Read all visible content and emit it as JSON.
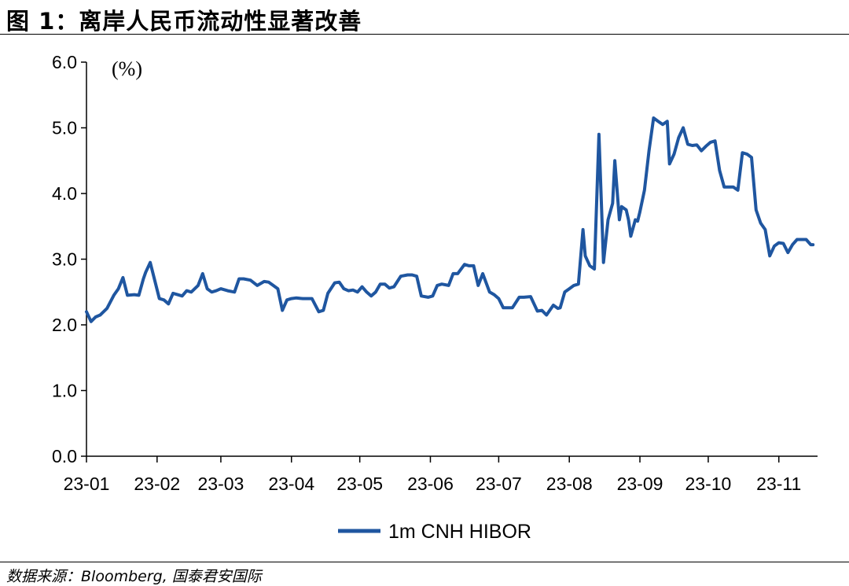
{
  "header": {
    "title": "图 1：离岸人民币流动性显著改善"
  },
  "footer": {
    "source": "数据来源：Bloomberg, 国泰君安国际"
  },
  "chart_data": {
    "type": "line",
    "unit_label": "(%)",
    "ylim": [
      0,
      6
    ],
    "yticks": [
      0,
      1,
      2,
      3,
      4,
      5,
      6
    ],
    "ytick_labels": [
      "0.0",
      "1.0",
      "2.0",
      "3.0",
      "4.0",
      "5.0",
      "6.0"
    ],
    "xlim": [
      "2023-01-01",
      "2023-11-18"
    ],
    "xtick_labels": [
      "23-01",
      "23-02",
      "23-03",
      "23-04",
      "23-05",
      "23-06",
      "23-07",
      "23-08",
      "23-09",
      "23-10",
      "23-11"
    ],
    "xtick_dates": [
      "2023-01-01",
      "2023-02-01",
      "2023-03-01",
      "2023-04-01",
      "2023-05-01",
      "2023-06-01",
      "2023-07-01",
      "2023-08-01",
      "2023-09-01",
      "2023-10-01",
      "2023-11-01"
    ],
    "grid": false,
    "legend_position": "bottom-center",
    "series": [
      {
        "name": "1m CNH HIBOR",
        "color": "#1F56A0",
        "x": [
          "2023-01-01",
          "2023-01-03",
          "2023-01-05",
          "2023-01-07",
          "2023-01-10",
          "2023-01-13",
          "2023-01-15",
          "2023-01-17",
          "2023-01-19",
          "2023-01-22",
          "2023-01-24",
          "2023-01-26",
          "2023-01-27",
          "2023-01-29",
          "2023-02-02",
          "2023-02-04",
          "2023-02-06",
          "2023-02-08",
          "2023-02-10",
          "2023-02-12",
          "2023-02-14",
          "2023-02-16",
          "2023-02-19",
          "2023-02-21",
          "2023-02-23",
          "2023-02-25",
          "2023-02-27",
          "2023-03-01",
          "2023-03-04",
          "2023-03-07",
          "2023-03-09",
          "2023-03-11",
          "2023-03-14",
          "2023-03-17",
          "2023-03-20",
          "2023-03-22",
          "2023-03-24",
          "2023-03-26",
          "2023-03-28",
          "2023-03-30",
          "2023-04-01",
          "2023-04-03",
          "2023-04-06",
          "2023-04-10",
          "2023-04-13",
          "2023-04-15",
          "2023-04-17",
          "2023-04-20",
          "2023-04-22",
          "2023-04-24",
          "2023-04-26",
          "2023-04-28",
          "2023-04-30",
          "2023-05-02",
          "2023-05-04",
          "2023-05-06",
          "2023-05-08",
          "2023-05-10",
          "2023-05-12",
          "2023-05-14",
          "2023-05-16",
          "2023-05-19",
          "2023-05-22",
          "2023-05-24",
          "2023-05-26",
          "2023-05-28",
          "2023-05-31",
          "2023-06-02",
          "2023-06-04",
          "2023-06-06",
          "2023-06-09",
          "2023-06-11",
          "2023-06-13",
          "2023-06-16",
          "2023-06-18",
          "2023-06-20",
          "2023-06-22",
          "2023-06-24",
          "2023-06-27",
          "2023-06-29",
          "2023-07-01",
          "2023-07-03",
          "2023-07-05",
          "2023-07-07",
          "2023-07-10",
          "2023-07-12",
          "2023-07-15",
          "2023-07-18",
          "2023-07-20",
          "2023-07-22",
          "2023-07-25",
          "2023-07-27",
          "2023-07-28",
          "2023-07-30",
          "2023-08-01",
          "2023-08-03",
          "2023-08-05",
          "2023-08-07",
          "2023-08-08",
          "2023-08-10",
          "2023-08-12",
          "2023-08-14",
          "2023-08-16",
          "2023-08-18",
          "2023-08-20",
          "2023-08-21",
          "2023-08-23",
          "2023-08-24",
          "2023-08-26",
          "2023-08-27",
          "2023-08-28",
          "2023-08-30",
          "2023-08-31",
          "2023-09-01",
          "2023-09-03",
          "2023-09-05",
          "2023-09-07",
          "2023-09-09",
          "2023-09-11",
          "2023-09-13",
          "2023-09-14",
          "2023-09-16",
          "2023-09-18",
          "2023-09-20",
          "2023-09-22",
          "2023-09-24",
          "2023-09-26",
          "2023-09-28",
          "2023-09-30",
          "2023-10-02",
          "2023-10-04",
          "2023-10-06",
          "2023-10-08",
          "2023-10-10",
          "2023-10-12",
          "2023-10-14",
          "2023-10-16",
          "2023-10-18",
          "2023-10-20",
          "2023-10-22",
          "2023-10-24",
          "2023-10-26",
          "2023-10-28",
          "2023-10-30",
          "2023-11-01",
          "2023-11-03",
          "2023-11-05",
          "2023-11-07",
          "2023-11-09",
          "2023-11-11",
          "2023-11-13",
          "2023-11-15",
          "2023-11-16"
        ],
        "values": [
          2.2,
          2.05,
          2.12,
          2.15,
          2.25,
          2.45,
          2.55,
          2.72,
          2.45,
          2.46,
          2.45,
          2.7,
          2.8,
          2.95,
          2.4,
          2.38,
          2.32,
          2.48,
          2.46,
          2.44,
          2.52,
          2.5,
          2.6,
          2.78,
          2.55,
          2.5,
          2.52,
          2.55,
          2.52,
          2.5,
          2.7,
          2.7,
          2.68,
          2.6,
          2.66,
          2.65,
          2.6,
          2.55,
          2.22,
          2.38,
          2.4,
          2.41,
          2.4,
          2.4,
          2.2,
          2.22,
          2.48,
          2.64,
          2.65,
          2.55,
          2.52,
          2.53,
          2.5,
          2.58,
          2.5,
          2.44,
          2.5,
          2.62,
          2.62,
          2.56,
          2.58,
          2.74,
          2.76,
          2.76,
          2.74,
          2.44,
          2.42,
          2.44,
          2.6,
          2.62,
          2.6,
          2.78,
          2.78,
          2.92,
          2.9,
          2.9,
          2.6,
          2.78,
          2.5,
          2.46,
          2.4,
          2.26,
          2.26,
          2.26,
          2.42,
          2.42,
          2.43,
          2.21,
          2.22,
          2.15,
          2.3,
          2.25,
          2.26,
          2.5,
          2.55,
          2.6,
          2.62,
          3.45,
          3.05,
          2.9,
          2.85,
          4.9,
          2.95,
          3.6,
          3.85,
          4.5,
          3.6,
          3.8,
          3.75,
          3.6,
          3.35,
          3.6,
          3.58,
          3.72,
          4.05,
          4.65,
          5.15,
          5.1,
          5.05,
          5.1,
          4.45,
          4.6,
          4.85,
          5.0,
          4.75,
          4.73,
          4.74,
          4.65,
          4.72,
          4.78,
          4.8,
          4.35,
          4.1,
          4.1,
          4.1,
          4.05,
          4.62,
          4.6,
          4.55,
          3.75,
          3.55,
          3.45,
          3.05,
          3.2,
          3.25,
          3.24,
          3.1,
          3.22,
          3.3,
          3.3,
          3.3,
          3.22,
          3.22
        ]
      }
    ]
  }
}
